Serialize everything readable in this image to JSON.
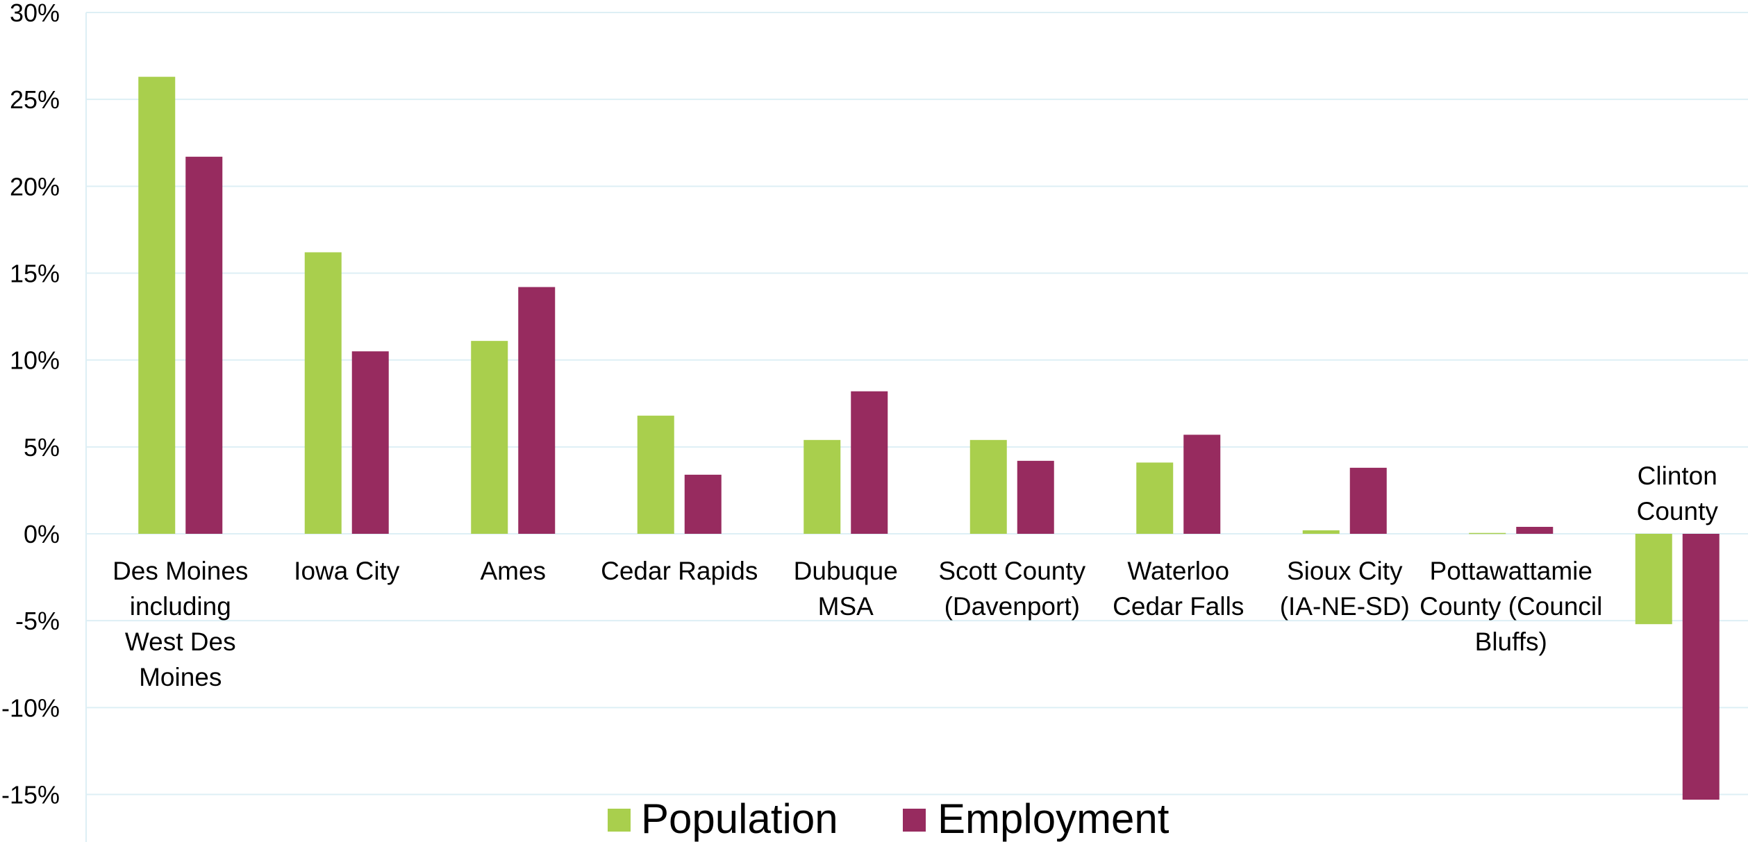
{
  "chart_data": {
    "type": "bar",
    "categories": [
      [
        "Des Moines",
        "including",
        "West Des",
        "Moines"
      ],
      [
        "Iowa City"
      ],
      [
        "Ames"
      ],
      [
        "Cedar Rapids"
      ],
      [
        "Dubuque",
        "MSA"
      ],
      [
        "Scott County",
        "(Davenport)"
      ],
      [
        "Waterloo",
        "Cedar Falls"
      ],
      [
        "Sioux City",
        "(IA-NE-SD)"
      ],
      [
        "Pottawattamie",
        "County (Council",
        "Bluffs)"
      ],
      [
        "Clinton",
        "County"
      ]
    ],
    "series": [
      {
        "name": "Population",
        "color": "#A9CF4D",
        "values": [
          26.3,
          16.2,
          11.1,
          6.8,
          5.4,
          5.4,
          4.1,
          0.2,
          0.05,
          -5.2
        ]
      },
      {
        "name": "Employment",
        "color": "#972B5F",
        "values": [
          21.7,
          10.5,
          14.2,
          3.4,
          8.2,
          4.2,
          5.7,
          3.8,
          0.4,
          -15.3
        ]
      }
    ],
    "ylim": [
      -17,
      30
    ],
    "yticks": [
      30,
      25,
      20,
      15,
      10,
      5,
      0,
      -5,
      -10,
      -15
    ],
    "ytick_labels": [
      "30%",
      "25%",
      "20%",
      "15%",
      "10%",
      "5%",
      "0%",
      "-5%",
      "-10%",
      "-15%"
    ],
    "title": "",
    "xlabel": "",
    "ylabel": "",
    "grid": true,
    "gridline_color": "#DDEFF5",
    "legend_position": "bottom-center"
  }
}
